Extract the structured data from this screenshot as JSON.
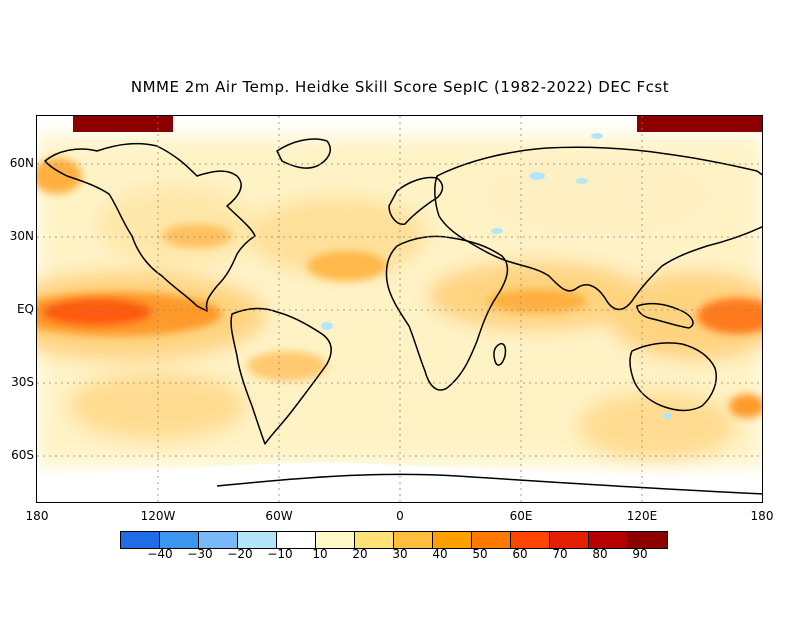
{
  "title": "NMME 2m Air Temp. Heidke Skill Score SepIC (1982-2022) DEC Fcst",
  "map": {
    "projection": "equirectangular",
    "lat_labels": [
      "60N",
      "30N",
      "EQ",
      "30S",
      "60S"
    ],
    "lon_labels": [
      "180",
      "120W",
      "60W",
      "0",
      "60E",
      "120E",
      "180"
    ],
    "grid": "dotted"
  },
  "colorbar": {
    "colors": [
      "#1e6ce6",
      "#3c96f0",
      "#78b9fa",
      "#b4e6fa",
      "#ffffff",
      "#fffac8",
      "#ffe178",
      "#ffbe3c",
      "#ffa000",
      "#ff7800",
      "#ff4600",
      "#e61e00",
      "#b40000",
      "#8c0000"
    ],
    "labels": [
      "-40",
      "-30",
      "-20",
      "-10",
      "10",
      "20",
      "30",
      "40",
      "50",
      "60",
      "70",
      "80",
      "90"
    ]
  }
}
